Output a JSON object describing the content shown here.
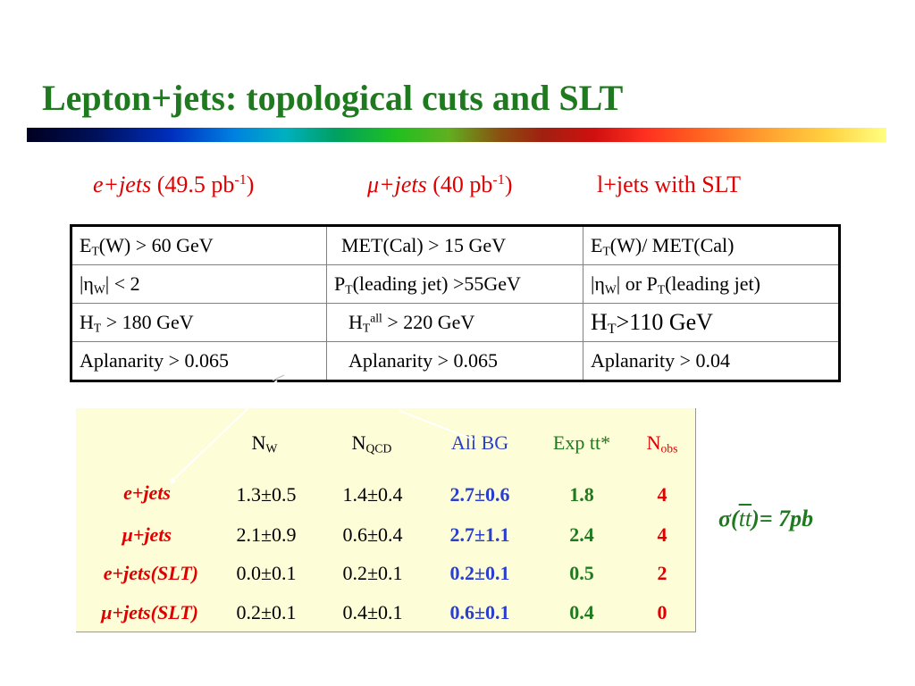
{
  "slide": {
    "title": "Lepton+jets: topological cuts and SLT"
  },
  "channels": {
    "e_jets": {
      "label": "e+jets",
      "lumi_open": " (49.5 pb",
      "lumi_exp": "-1",
      "lumi_close": ")"
    },
    "mu_jets": {
      "mu": "μ",
      "label": "+jets",
      "lumi_open": " (40 pb",
      "lumi_exp": "-1",
      "lumi_close": ")"
    },
    "l_jets_slt": {
      "label": "l+jets with SLT"
    }
  },
  "cuts_table": {
    "rows": [
      [
        {
          "a": "E",
          "sub": "T",
          "b": "(W) > 60 GeV"
        },
        {
          "a": "MET(Cal) > 15 GeV"
        },
        {
          "a": "E",
          "sub": "T",
          "b": "(W)/ MET(Cal)"
        }
      ],
      [
        {
          "a": "|η",
          "sub": "W",
          "b": "|  < 2"
        },
        {
          "a": "P",
          "sub": "T",
          "b": "(leading jet) >55GeV"
        },
        {
          "a": "|η",
          "sub": "W",
          "b": "| or P",
          "sub2": "T",
          "c": "(leading jet)"
        }
      ],
      [
        {
          "a": "H",
          "sub": "T",
          "b": " > 180 GeV"
        },
        {
          "a": "H",
          "sub": "T",
          "sup": "all",
          "b": " > 220 GeV"
        },
        {
          "a": "H",
          "sub": "T",
          "b": ">110 GeV"
        }
      ],
      [
        {
          "a": "Aplanarity > 0.065"
        },
        {
          "a": "Aplanarity > 0.065"
        },
        {
          "a": "Aplanarity > 0.04"
        }
      ]
    ]
  },
  "yields_table": {
    "headers": {
      "nw": {
        "a": "N",
        "sub": "W"
      },
      "nqcd": {
        "a": "N",
        "sub": "QCD"
      },
      "allbg": "All BG",
      "exptt": "Exp tt*",
      "nobs": {
        "a": "N",
        "sub": "obs"
      }
    },
    "rows": [
      {
        "label": "e+jets",
        "nw": "1.3±0.5",
        "nqcd": "1.4±0.4",
        "allbg": "2.7±0.6",
        "exptt": "1.8",
        "nobs": "4"
      },
      {
        "label": "μ+jets",
        "nw": "2.1±0.9",
        "nqcd": "0.6±0.4",
        "allbg": "2.7±1.1",
        "exptt": "2.4",
        "nobs": "4"
      },
      {
        "label": "e+jets(SLT)",
        "nw": "0.0±0.1",
        "nqcd": "0.2±0.1",
        "allbg": "0.2±0.1",
        "exptt": "0.5",
        "nobs": "2"
      },
      {
        "label": "μ+jets(SLT)",
        "nw": "0.2±0.1",
        "nqcd": "0.4±0.1",
        "allbg": "0.6±0.1",
        "exptt": "0.4",
        "nobs": "0"
      }
    ]
  },
  "cross_section": {
    "sigma": "σ(",
    "tt": "tt",
    "value": ")= 7pb"
  },
  "colors": {
    "title": "#1f7a1f",
    "red": "#e00000",
    "blue": "#2a3fd0",
    "panel_bg": "#fdfdd8"
  }
}
